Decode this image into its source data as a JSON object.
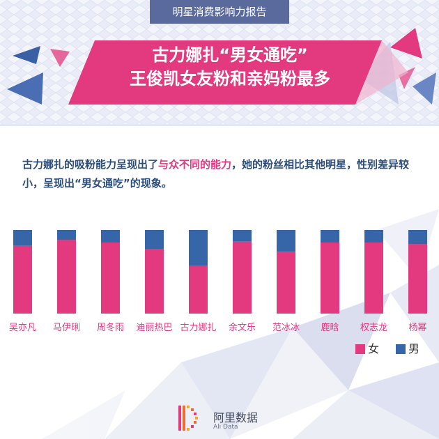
{
  "header": {
    "report_title": "明星消费影响力报告"
  },
  "headline": {
    "line1": "古力娜扎“男女通吃”",
    "line2": "王俊凯女友粉和亲妈粉最多"
  },
  "intro": {
    "part1": "古力娜扎的吸粉能力呈现出了",
    "highlight": "与众不同的能力",
    "part2": "，她的粉丝相比其他明星，性别差异较小，呈现出“男女通吃”的现象。"
  },
  "logo": {
    "name": "阿里数据",
    "sub": "Ali Data"
  },
  "colors": {
    "female": "#e2397f",
    "male": "#3766a8",
    "headline_band": "#e2397f",
    "intro_text": "#2c4d7a",
    "accent_blue": "#5a6a9c"
  },
  "chart_data": {
    "type": "bar",
    "stacked": true,
    "normalized": true,
    "categories": [
      "吴亦凡",
      "马伊琍",
      "周冬雨",
      "迪丽热巴",
      "古力娜扎",
      "余文乐",
      "范冰冰",
      "鹿晗",
      "权志龙",
      "杨幂"
    ],
    "series": [
      {
        "name": "女",
        "values": [
          0.81,
          0.88,
          0.85,
          0.77,
          0.57,
          0.86,
          0.74,
          0.85,
          0.85,
          0.83
        ]
      },
      {
        "name": "男",
        "values": [
          0.19,
          0.12,
          0.15,
          0.23,
          0.43,
          0.14,
          0.26,
          0.15,
          0.15,
          0.17
        ]
      }
    ],
    "ylim": [
      0,
      1
    ],
    "grid": false,
    "legend_position": "bottom-right"
  }
}
